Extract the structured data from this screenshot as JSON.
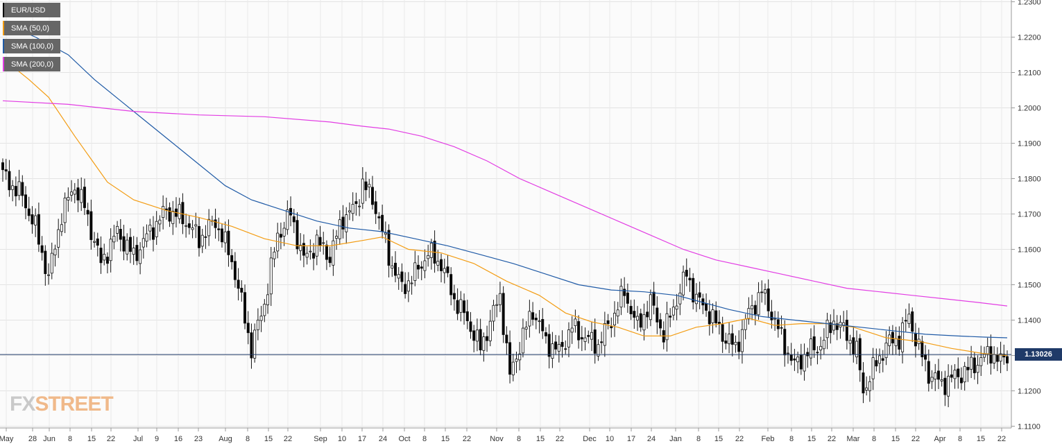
{
  "legend": [
    {
      "label": "EUR/USD",
      "color": "#000000"
    },
    {
      "label": "SMA (50,0)",
      "color": "#f39c12"
    },
    {
      "label": "SMA (100,0)",
      "color": "#1f5aa6"
    },
    {
      "label": "SMA (200,0)",
      "color": "#e23ce3"
    }
  ],
  "current_price_label": "1.13026",
  "logo": {
    "fx": "FX",
    "street": "STREET"
  },
  "chart_data": {
    "type": "candlestick",
    "title": "",
    "instrument": "EUR/USD",
    "timeframe": "daily",
    "ylim": [
      1.1095,
      1.2305
    ],
    "y_ticks": [
      "1.2300",
      "1.2200",
      "1.2100",
      "1.2000",
      "1.1900",
      "1.1800",
      "1.1700",
      "1.1600",
      "1.1500",
      "1.1400",
      "1.1300",
      "1.1200",
      "1.1100"
    ],
    "x_ticks": [
      "May",
      "28",
      "Jun",
      "8",
      "15",
      "22",
      "Jul",
      "9",
      "16",
      "23",
      "Aug",
      "8",
      "15",
      "22",
      "Sep",
      "10",
      "17",
      "24",
      "Oct",
      "8",
      "15",
      "22",
      "Nov",
      "8",
      "15",
      "22",
      "Dec",
      "10",
      "17",
      "24",
      "Jan",
      "8",
      "15",
      "22",
      "Feb",
      "8",
      "15",
      "22",
      "Mar",
      "8",
      "15",
      "22",
      "Apr",
      "8",
      "15",
      "22"
    ],
    "current_price": 1.13026,
    "grid": true,
    "close_series_approx": {
      "anchors": [
        [
          0,
          1.181
        ],
        [
          6,
          1.175
        ],
        [
          10,
          1.166
        ],
        [
          14,
          1.152
        ],
        [
          18,
          1.17
        ],
        [
          22,
          1.178
        ],
        [
          25,
          1.172
        ],
        [
          30,
          1.156
        ],
        [
          35,
          1.165
        ],
        [
          40,
          1.158
        ],
        [
          45,
          1.165
        ],
        [
          50,
          1.171
        ],
        [
          55,
          1.169
        ],
        [
          60,
          1.163
        ],
        [
          65,
          1.168
        ],
        [
          70,
          1.157
        ],
        [
          72,
          1.149
        ],
        [
          76,
          1.132
        ],
        [
          80,
          1.145
        ],
        [
          84,
          1.164
        ],
        [
          88,
          1.17
        ],
        [
          92,
          1.157
        ],
        [
          96,
          1.162
        ],
        [
          100,
          1.158
        ],
        [
          104,
          1.169
        ],
        [
          108,
          1.172
        ],
        [
          110,
          1.179
        ],
        [
          114,
          1.172
        ],
        [
          118,
          1.158
        ],
        [
          122,
          1.149
        ],
        [
          126,
          1.153
        ],
        [
          130,
          1.159
        ],
        [
          134,
          1.156
        ],
        [
          138,
          1.146
        ],
        [
          142,
          1.14
        ],
        [
          146,
          1.132
        ],
        [
          150,
          1.142
        ],
        [
          152,
          1.147
        ],
        [
          155,
          1.124
        ],
        [
          158,
          1.133
        ],
        [
          162,
          1.143
        ],
        [
          166,
          1.134
        ],
        [
          170,
          1.131
        ],
        [
          174,
          1.138
        ],
        [
          178,
          1.135
        ],
        [
          182,
          1.133
        ],
        [
          186,
          1.14
        ],
        [
          190,
          1.148
        ],
        [
          194,
          1.138
        ],
        [
          198,
          1.145
        ],
        [
          202,
          1.136
        ],
        [
          206,
          1.146
        ],
        [
          209,
          1.153
        ],
        [
          212,
          1.146
        ],
        [
          216,
          1.142
        ],
        [
          220,
          1.136
        ],
        [
          224,
          1.132
        ],
        [
          228,
          1.142
        ],
        [
          232,
          1.148
        ],
        [
          235,
          1.142
        ],
        [
          238,
          1.135
        ],
        [
          242,
          1.127
        ],
        [
          246,
          1.131
        ],
        [
          250,
          1.133
        ],
        [
          254,
          1.14
        ],
        [
          258,
          1.136
        ],
        [
          261,
          1.131
        ],
        [
          263,
          1.12
        ],
        [
          266,
          1.126
        ],
        [
          270,
          1.133
        ],
        [
          274,
          1.135
        ],
        [
          277,
          1.141
        ],
        [
          280,
          1.132
        ],
        [
          283,
          1.125
        ],
        [
          287,
          1.122
        ],
        [
          291,
          1.124
        ],
        [
          295,
          1.126
        ],
        [
          299,
          1.129
        ],
        [
          302,
          1.131
        ],
        [
          305,
          1.128
        ],
        [
          307,
          1.1303
        ]
      ]
    },
    "series": [
      {
        "name": "SMA (50,0)",
        "color": "#f39c12",
        "points": [
          [
            0,
            1.214
          ],
          [
            8,
            1.208
          ],
          [
            14,
            1.203
          ],
          [
            22,
            1.192
          ],
          [
            32,
            1.179
          ],
          [
            40,
            1.174
          ],
          [
            50,
            1.171
          ],
          [
            60,
            1.169
          ],
          [
            70,
            1.1665
          ],
          [
            80,
            1.163
          ],
          [
            90,
            1.161
          ],
          [
            100,
            1.161
          ],
          [
            110,
            1.1625
          ],
          [
            116,
            1.1635
          ],
          [
            124,
            1.16
          ],
          [
            134,
            1.159
          ],
          [
            144,
            1.156
          ],
          [
            154,
            1.151
          ],
          [
            164,
            1.147
          ],
          [
            172,
            1.142
          ],
          [
            180,
            1.1395
          ],
          [
            188,
            1.138
          ],
          [
            196,
            1.1355
          ],
          [
            204,
            1.1355
          ],
          [
            212,
            1.138
          ],
          [
            220,
            1.139
          ],
          [
            228,
            1.1405
          ],
          [
            236,
            1.1385
          ],
          [
            244,
            1.139
          ],
          [
            252,
            1.139
          ],
          [
            260,
            1.138
          ],
          [
            270,
            1.135
          ],
          [
            280,
            1.134
          ],
          [
            290,
            1.132
          ],
          [
            300,
            1.1305
          ],
          [
            307,
            1.13
          ]
        ]
      },
      {
        "name": "SMA (100,0)",
        "color": "#1f5aa6",
        "points": [
          [
            0,
            1.224
          ],
          [
            10,
            1.22
          ],
          [
            20,
            1.215
          ],
          [
            28,
            1.208
          ],
          [
            36,
            1.202
          ],
          [
            44,
            1.196
          ],
          [
            52,
            1.19
          ],
          [
            60,
            1.184
          ],
          [
            68,
            1.178
          ],
          [
            76,
            1.174
          ],
          [
            86,
            1.171
          ],
          [
            96,
            1.168
          ],
          [
            106,
            1.166
          ],
          [
            116,
            1.165
          ],
          [
            126,
            1.163
          ],
          [
            136,
            1.161
          ],
          [
            146,
            1.1585
          ],
          [
            156,
            1.156
          ],
          [
            166,
            1.153
          ],
          [
            176,
            1.15
          ],
          [
            186,
            1.1485
          ],
          [
            196,
            1.148
          ],
          [
            206,
            1.147
          ],
          [
            214,
            1.145
          ],
          [
            222,
            1.143
          ],
          [
            232,
            1.141
          ],
          [
            242,
            1.14
          ],
          [
            252,
            1.139
          ],
          [
            262,
            1.138
          ],
          [
            272,
            1.137
          ],
          [
            282,
            1.136
          ],
          [
            292,
            1.1355
          ],
          [
            300,
            1.1352
          ],
          [
            307,
            1.135
          ]
        ]
      },
      {
        "name": "SMA (200,0)",
        "color": "#e23ce3",
        "points": [
          [
            0,
            1.202
          ],
          [
            20,
            1.201
          ],
          [
            40,
            1.199
          ],
          [
            60,
            1.198
          ],
          [
            80,
            1.1975
          ],
          [
            100,
            1.196
          ],
          [
            110,
            1.1948
          ],
          [
            118,
            1.194
          ],
          [
            128,
            1.192
          ],
          [
            138,
            1.189
          ],
          [
            148,
            1.185
          ],
          [
            158,
            1.18
          ],
          [
            168,
            1.176
          ],
          [
            178,
            1.172
          ],
          [
            188,
            1.168
          ],
          [
            198,
            1.164
          ],
          [
            208,
            1.16
          ],
          [
            218,
            1.157
          ],
          [
            228,
            1.155
          ],
          [
            238,
            1.153
          ],
          [
            248,
            1.151
          ],
          [
            258,
            1.149
          ],
          [
            268,
            1.148
          ],
          [
            278,
            1.147
          ],
          [
            288,
            1.146
          ],
          [
            298,
            1.145
          ],
          [
            307,
            1.144
          ]
        ]
      }
    ]
  }
}
